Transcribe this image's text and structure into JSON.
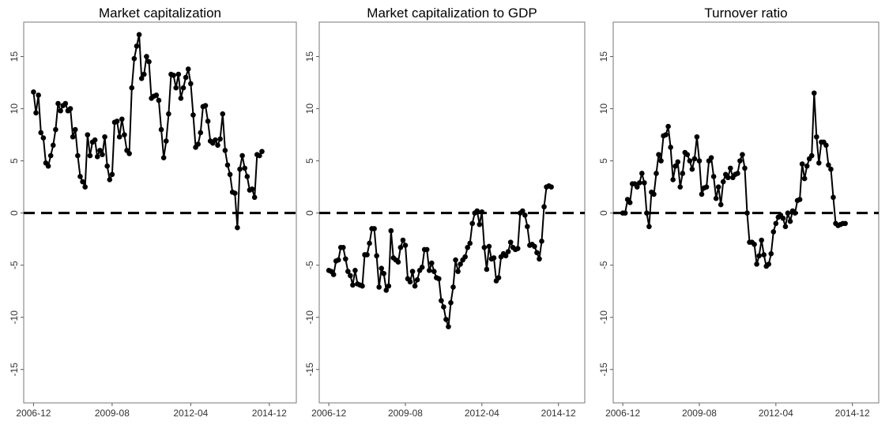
{
  "chart_data": [
    {
      "type": "line",
      "title": "Market capitalization",
      "color": "#000000",
      "markers": true,
      "reference_line": 0,
      "x": [
        "2006-12",
        "2007-01",
        "2007-02",
        "2007-03",
        "2007-04",
        "2007-05",
        "2007-06",
        "2007-07",
        "2007-08",
        "2007-09",
        "2007-10",
        "2007-11",
        "2007-12",
        "2008-01",
        "2008-02",
        "2008-03",
        "2008-04",
        "2008-05",
        "2008-06",
        "2008-07",
        "2008-08",
        "2008-09",
        "2008-10",
        "2008-11",
        "2008-12",
        "2009-01",
        "2009-02",
        "2009-03",
        "2009-04",
        "2009-05",
        "2009-06",
        "2009-07",
        "2009-08",
        "2009-09",
        "2009-10",
        "2009-11",
        "2009-12",
        "2010-01",
        "2010-02",
        "2010-03",
        "2010-04",
        "2010-05",
        "2010-06",
        "2010-07",
        "2010-08",
        "2010-09",
        "2010-10",
        "2010-11",
        "2010-12",
        "2011-01",
        "2011-02",
        "2011-03",
        "2011-04",
        "2011-05",
        "2011-06",
        "2011-07",
        "2011-08",
        "2011-09",
        "2011-10",
        "2011-11",
        "2011-12",
        "2012-01",
        "2012-02",
        "2012-03",
        "2012-04",
        "2012-05",
        "2012-06",
        "2012-07",
        "2012-08",
        "2012-09",
        "2012-10",
        "2012-11",
        "2012-12",
        "2013-01",
        "2013-02",
        "2013-03",
        "2013-04",
        "2013-05",
        "2013-06",
        "2013-07",
        "2013-08",
        "2013-09",
        "2013-10",
        "2013-11",
        "2013-12",
        "2014-01",
        "2014-02",
        "2014-03",
        "2014-04",
        "2014-05",
        "2014-06",
        "2014-07",
        "2014-08",
        "2014-09"
      ],
      "values": [
        11.6,
        9.6,
        11.3,
        7.7,
        7.2,
        4.8,
        4.5,
        5.5,
        6.5,
        8,
        10.5,
        9.8,
        10.3,
        10.5,
        9.8,
        10,
        7.3,
        8,
        5.5,
        3.5,
        3,
        2.5,
        7.5,
        5.5,
        6.8,
        7,
        5.4,
        6,
        5.6,
        7.3,
        4.5,
        3.2,
        3.7,
        8.7,
        8.8,
        7.3,
        9,
        7.5,
        6,
        5.7,
        12,
        14.8,
        16,
        17.1,
        12.9,
        13.3,
        15,
        14.5,
        11,
        11.2,
        11.3,
        10.8,
        8,
        5.3,
        6.9,
        9.5,
        13.3,
        13.2,
        12,
        13.3,
        11,
        12,
        13,
        13.8,
        12.4,
        9.4,
        6.3,
        6.6,
        7.7,
        10.2,
        10.3,
        8.8,
        6.9,
        6.7,
        7,
        6.5,
        7.1,
        9.5,
        6,
        4.6,
        3.7,
        2,
        1.9,
        -1.4,
        4.2,
        5.5,
        4.3,
        3.5,
        2.2,
        2.3,
        1.5,
        5.6,
        5.5,
        5.9
      ],
      "xlim": [
        "2006-08",
        "2015-11"
      ],
      "xticks": [
        "2006-12",
        "2009-08",
        "2012-04",
        "2014-12"
      ],
      "ylim": [
        -18.2,
        18.3
      ],
      "yticks": [
        -15,
        -10,
        -5,
        0,
        5,
        10,
        15
      ]
    },
    {
      "type": "line",
      "title": "Market capitalization to GDP",
      "color": "#000000",
      "markers": true,
      "reference_line": 0,
      "x": [
        "2006-12",
        "2007-01",
        "2007-02",
        "2007-03",
        "2007-04",
        "2007-05",
        "2007-06",
        "2007-07",
        "2007-08",
        "2007-09",
        "2007-10",
        "2007-11",
        "2007-12",
        "2008-01",
        "2008-02",
        "2008-03",
        "2008-04",
        "2008-05",
        "2008-06",
        "2008-07",
        "2008-08",
        "2008-09",
        "2008-10",
        "2008-11",
        "2008-12",
        "2009-01",
        "2009-02",
        "2009-03",
        "2009-04",
        "2009-05",
        "2009-06",
        "2009-07",
        "2009-08",
        "2009-09",
        "2009-10",
        "2009-11",
        "2009-12",
        "2010-01",
        "2010-02",
        "2010-03",
        "2010-04",
        "2010-05",
        "2010-06",
        "2010-07",
        "2010-08",
        "2010-09",
        "2010-10",
        "2010-11",
        "2010-12",
        "2011-01",
        "2011-02",
        "2011-03",
        "2011-04",
        "2011-05",
        "2011-06",
        "2011-07",
        "2011-08",
        "2011-09",
        "2011-10",
        "2011-11",
        "2011-12",
        "2012-01",
        "2012-02",
        "2012-03",
        "2012-04",
        "2012-05",
        "2012-06",
        "2012-07",
        "2012-08",
        "2012-09",
        "2012-10",
        "2012-11",
        "2012-12",
        "2013-01",
        "2013-02",
        "2013-03",
        "2013-04",
        "2013-05",
        "2013-06",
        "2013-07",
        "2013-08",
        "2013-09",
        "2013-10",
        "2013-11",
        "2013-12",
        "2014-01",
        "2014-02",
        "2014-03",
        "2014-04",
        "2014-05",
        "2014-06",
        "2014-07",
        "2014-08",
        "2014-09"
      ],
      "values": [
        -5.5,
        -5.6,
        -5.9,
        -4.6,
        -4.5,
        -3.3,
        -3.3,
        -4.4,
        -5.6,
        -6,
        -6.9,
        -5.5,
        -6.8,
        -6.9,
        -7,
        -4,
        -4,
        -2.9,
        -1.5,
        -1.5,
        -4.1,
        -7.1,
        -5.3,
        -5.8,
        -7.4,
        -7,
        -1.7,
        -4.3,
        -4.5,
        -4.7,
        -3.3,
        -2.6,
        -3.1,
        -6.3,
        -6.6,
        -5.6,
        -7,
        -6.4,
        -5.5,
        -5.2,
        -3.5,
        -3.5,
        -5.5,
        -4.8,
        -5.6,
        -6.2,
        -6.3,
        -8.4,
        -9,
        -10.2,
        -10.9,
        -8.6,
        -7.1,
        -4.5,
        -5.6,
        -4.9,
        -4.5,
        -4.2,
        -3.3,
        -2.9,
        -1,
        0,
        0.2,
        -1.1,
        0.1,
        -3.3,
        -5.4,
        -3.2,
        -4.4,
        -4.3,
        -6.5,
        -6.2,
        -4.2,
        -3.9,
        -4.1,
        -3.7,
        -2.8,
        -3.3,
        -3.5,
        -3.4,
        0,
        0.2,
        -0.2,
        -1.3,
        -3.1,
        -3,
        -3.2,
        -3.8,
        -4.4,
        -2.7,
        0.6,
        2.5,
        2.6,
        2.5
      ],
      "xlim": [
        "2006-08",
        "2015-11"
      ],
      "xticks": [
        "2006-12",
        "2009-08",
        "2012-04",
        "2014-12"
      ],
      "ylim": [
        -18.2,
        18.3
      ],
      "yticks": [
        -15,
        -10,
        -5,
        0,
        5,
        10,
        15
      ]
    },
    {
      "type": "line",
      "title": "Turnover ratio",
      "color": "#000000",
      "markers": true,
      "reference_line": 0,
      "x": [
        "2006-12",
        "2007-01",
        "2007-02",
        "2007-03",
        "2007-04",
        "2007-05",
        "2007-06",
        "2007-07",
        "2007-08",
        "2007-09",
        "2007-10",
        "2007-11",
        "2007-12",
        "2008-01",
        "2008-02",
        "2008-03",
        "2008-04",
        "2008-05",
        "2008-06",
        "2008-07",
        "2008-08",
        "2008-09",
        "2008-10",
        "2008-11",
        "2008-12",
        "2009-01",
        "2009-02",
        "2009-03",
        "2009-04",
        "2009-05",
        "2009-06",
        "2009-07",
        "2009-08",
        "2009-09",
        "2009-10",
        "2009-11",
        "2009-12",
        "2010-01",
        "2010-02",
        "2010-03",
        "2010-04",
        "2010-05",
        "2010-06",
        "2010-07",
        "2010-08",
        "2010-09",
        "2010-10",
        "2010-11",
        "2010-12",
        "2011-01",
        "2011-02",
        "2011-03",
        "2011-04",
        "2011-05",
        "2011-06",
        "2011-07",
        "2011-08",
        "2011-09",
        "2011-10",
        "2011-11",
        "2011-12",
        "2012-01",
        "2012-02",
        "2012-03",
        "2012-04",
        "2012-05",
        "2012-06",
        "2012-07",
        "2012-08",
        "2012-09",
        "2012-10",
        "2012-11",
        "2012-12",
        "2013-01",
        "2013-02",
        "2013-03",
        "2013-04",
        "2013-05",
        "2013-06",
        "2013-07",
        "2013-08",
        "2013-09",
        "2013-10",
        "2013-11",
        "2013-12",
        "2014-01",
        "2014-02",
        "2014-03",
        "2014-04",
        "2014-05",
        "2014-06",
        "2014-07",
        "2014-08",
        "2014-09"
      ],
      "values": [
        0,
        0,
        1.3,
        1,
        2.8,
        2.8,
        2.5,
        2.9,
        3.8,
        2.9,
        0,
        -1.3,
        2,
        1.8,
        3.8,
        5.6,
        5,
        7.4,
        7.5,
        8.3,
        6.3,
        3.2,
        4.5,
        4.9,
        2.5,
        3.8,
        5.8,
        5.6,
        5,
        4.2,
        5.2,
        7.3,
        5,
        1.8,
        2.4,
        2.5,
        5,
        5.3,
        3.5,
        1.4,
        2.5,
        0.8,
        3,
        3.7,
        3.4,
        4.3,
        3.4,
        3.7,
        3.8,
        5,
        5.6,
        4.3,
        0,
        -2.8,
        -2.8,
        -3,
        -4.9,
        -4.1,
        -2.6,
        -4,
        -5.1,
        -4.9,
        -3.9,
        -1.8,
        -1,
        -0.4,
        -0.2,
        -0.5,
        -1.3,
        0,
        -0.8,
        0.2,
        0,
        1.2,
        1.3,
        4.7,
        3.3,
        4.5,
        5.2,
        5.5,
        11.5,
        7.3,
        4.8,
        6.8,
        6.8,
        6.5,
        4.6,
        4.2,
        1.5,
        -1,
        -1.2,
        -1.1,
        -1,
        -1
      ],
      "xlim": [
        "2006-08",
        "2015-11"
      ],
      "xticks": [
        "2006-12",
        "2009-08",
        "2012-04",
        "2014-12"
      ],
      "ylim": [
        -18.2,
        18.3
      ],
      "yticks": [
        -15,
        -10,
        -5,
        0,
        5,
        10,
        15
      ]
    }
  ]
}
